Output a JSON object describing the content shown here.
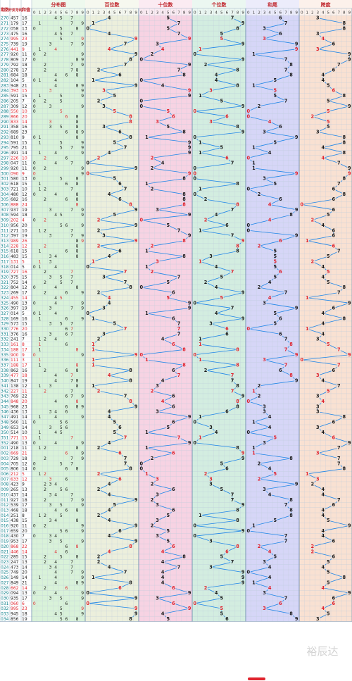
{
  "header": {
    "issue_label": "期数",
    "number_label": "开奖号码",
    "sum_label": "和值",
    "sections": [
      "分布图",
      "百位数",
      "十位数",
      "个位数",
      "和尾",
      "跨度"
    ],
    "digits": [
      "0",
      "1",
      "2",
      "3",
      "4",
      "5",
      "6",
      "7",
      "8",
      "9"
    ]
  },
  "watermark": "裕辰达",
  "colors": {
    "dist_bg": "#d9f2d9",
    "hundreds_bg": "#ecefdc",
    "tens_bg": "#f7d3e3",
    "units_bg": "#d3ede0",
    "hewei_bg": "#d6d6f7",
    "span_bg": "#f9e1d2",
    "line": "#1f86e8",
    "repeat_red": "#e0232d",
    "issue_teal": "#0d7f8a"
  },
  "chart_data": {
    "type": "table",
    "columns": [
      "期数",
      "开奖号码",
      "和值",
      "百位数",
      "十位数",
      "个位数",
      "和尾",
      "跨度"
    ],
    "rows": [
      {
        "issue": "270",
        "num": "457",
        "sum": "16"
      },
      {
        "issue": "271",
        "num": "179",
        "sum": "17"
      },
      {
        "issue": "272",
        "num": "058",
        "sum": "13"
      },
      {
        "issue": "273",
        "num": "475",
        "sum": "16"
      },
      {
        "issue": "274",
        "num": "995",
        "sum": "23"
      },
      {
        "issue": "275",
        "num": "739",
        "sum": "19"
      },
      {
        "issue": "276",
        "num": "441",
        "sum": "9"
      },
      {
        "issue": "277",
        "num": "920",
        "sum": "11"
      },
      {
        "issue": "278",
        "num": "809",
        "sum": "17"
      },
      {
        "issue": "279",
        "num": "792",
        "sum": "18"
      },
      {
        "issue": "280",
        "num": "278",
        "sum": "17"
      },
      {
        "issue": "281",
        "num": "684",
        "sum": "18"
      },
      {
        "issue": "282",
        "num": "104",
        "sum": "5"
      },
      {
        "issue": "283",
        "num": "948",
        "sum": "21"
      },
      {
        "issue": "284",
        "num": "393",
        "sum": "15"
      },
      {
        "issue": "285",
        "num": "591",
        "sum": "15"
      },
      {
        "issue": "286",
        "num": "205",
        "sum": "7"
      },
      {
        "issue": "287",
        "num": "309",
        "sum": "12"
      },
      {
        "issue": "288",
        "num": "550",
        "sum": "10"
      },
      {
        "issue": "289",
        "num": "866",
        "sum": "20"
      },
      {
        "issue": "290",
        "num": "833",
        "sum": "14"
      },
      {
        "issue": "291",
        "num": "358",
        "sum": "16"
      },
      {
        "issue": "292",
        "num": "689",
        "sum": "23"
      },
      {
        "issue": "293",
        "num": "810",
        "sum": "9"
      },
      {
        "issue": "294",
        "num": "591",
        "sum": "15"
      },
      {
        "issue": "295",
        "num": "795",
        "sum": "21"
      },
      {
        "issue": "296",
        "num": "491",
        "sum": "14"
      },
      {
        "issue": "297",
        "num": "226",
        "sum": "10"
      },
      {
        "issue": "298",
        "num": "047",
        "sum": "11"
      },
      {
        "issue": "299",
        "num": "920",
        "sum": "11"
      },
      {
        "issue": "300",
        "num": "090",
        "sum": "9"
      },
      {
        "issue": "301",
        "num": "580",
        "sum": "13"
      },
      {
        "issue": "302",
        "num": "618",
        "sum": "15"
      },
      {
        "issue": "303",
        "num": "721",
        "sum": "10"
      },
      {
        "issue": "304",
        "num": "480",
        "sum": "12"
      },
      {
        "issue": "305",
        "num": "682",
        "sum": "16"
      },
      {
        "issue": "306",
        "num": "888",
        "sum": "24"
      },
      {
        "issue": "307",
        "num": "937",
        "sum": "19"
      },
      {
        "issue": "308",
        "num": "594",
        "sum": "18"
      },
      {
        "issue": "309",
        "num": "202",
        "sum": "4"
      },
      {
        "issue": "310",
        "num": "956",
        "sum": "20"
      },
      {
        "issue": "311",
        "num": "271",
        "sum": "10"
      },
      {
        "issue": "312",
        "num": "397",
        "sum": "19"
      },
      {
        "issue": "313",
        "num": "989",
        "sum": "26"
      },
      {
        "issue": "314",
        "num": "228",
        "sum": "12"
      },
      {
        "issue": "315",
        "num": "618",
        "sum": "15"
      },
      {
        "issue": "316",
        "num": "483",
        "sum": "15"
      },
      {
        "issue": "317",
        "num": "131",
        "sum": "5"
      },
      {
        "issue": "318",
        "num": "014",
        "sum": "5"
      },
      {
        "issue": "319",
        "num": "727",
        "sum": "16"
      },
      {
        "issue": "320",
        "num": "375",
        "sum": "15"
      },
      {
        "issue": "321",
        "num": "752",
        "sum": "14"
      },
      {
        "issue": "322",
        "num": "804",
        "sum": "12"
      },
      {
        "issue": "323",
        "num": "269",
        "sum": "17"
      },
      {
        "issue": "324",
        "num": "455",
        "sum": "14"
      },
      {
        "issue": "325",
        "num": "490",
        "sum": "13"
      },
      {
        "issue": "326",
        "num": "397",
        "sum": "19"
      },
      {
        "issue": "327",
        "num": "014",
        "sum": "5"
      },
      {
        "issue": "328",
        "num": "169",
        "sum": "16"
      },
      {
        "issue": "329",
        "num": "573",
        "sum": "15"
      },
      {
        "issue": "330",
        "num": "776",
        "sum": "20"
      },
      {
        "issue": "331",
        "num": "376",
        "sum": "16"
      },
      {
        "issue": "332",
        "num": "241",
        "sum": "7"
      },
      {
        "issue": "333",
        "num": "161",
        "sum": "8"
      },
      {
        "issue": "334",
        "num": "188",
        "sum": "17"
      },
      {
        "issue": "335",
        "num": "900",
        "sum": "9"
      },
      {
        "issue": "336",
        "num": "111",
        "sum": "3"
      },
      {
        "issue": "337",
        "num": "188",
        "sum": "17"
      },
      {
        "issue": "338",
        "num": "862",
        "sum": "16"
      },
      {
        "issue": "339",
        "num": "477",
        "sum": "18"
      },
      {
        "issue": "340",
        "num": "847",
        "sum": "19"
      },
      {
        "issue": "341",
        "num": "138",
        "sum": "12"
      },
      {
        "issue": "342",
        "num": "227",
        "sum": "11"
      },
      {
        "issue": "343",
        "num": "769",
        "sum": "22"
      },
      {
        "issue": "344",
        "num": "848",
        "sum": "20"
      },
      {
        "issue": "345",
        "num": "968",
        "sum": "23"
      },
      {
        "issue": "346",
        "num": "436",
        "sum": "13"
      },
      {
        "issue": "347",
        "num": "491",
        "sum": "14"
      },
      {
        "issue": "348",
        "num": "560",
        "sum": "11"
      },
      {
        "issue": "349",
        "num": "653",
        "sum": "14"
      },
      {
        "issue": "350",
        "num": "514",
        "sum": "10"
      },
      {
        "issue": "351",
        "num": "771",
        "sum": "15"
      },
      {
        "issue": "352",
        "num": "490",
        "sum": "13"
      },
      {
        "issue": "001",
        "num": "218",
        "sum": "11"
      },
      {
        "issue": "002",
        "num": "669",
        "sum": "21"
      },
      {
        "issue": "003",
        "num": "729",
        "sum": "18"
      },
      {
        "issue": "004",
        "num": "705",
        "sum": "12"
      },
      {
        "issue": "005",
        "num": "806",
        "sum": "14"
      },
      {
        "issue": "006",
        "num": "212",
        "sum": "5"
      },
      {
        "issue": "007",
        "num": "633",
        "sum": "12"
      },
      {
        "issue": "008",
        "num": "423",
        "sum": "9"
      },
      {
        "issue": "009",
        "num": "265",
        "sum": "13"
      },
      {
        "issue": "010",
        "num": "437",
        "sum": "14"
      },
      {
        "issue": "011",
        "num": "927",
        "sum": "18"
      },
      {
        "issue": "012",
        "num": "539",
        "sum": "17"
      },
      {
        "issue": "013",
        "num": "468",
        "sum": "18"
      },
      {
        "issue": "014",
        "num": "251",
        "sum": "8"
      },
      {
        "issue": "015",
        "num": "438",
        "sum": "15"
      },
      {
        "issue": "016",
        "num": "920",
        "sum": "11"
      },
      {
        "issue": "017",
        "num": "659",
        "sum": "20"
      },
      {
        "issue": "018",
        "num": "430",
        "sum": "7"
      },
      {
        "issue": "019",
        "num": "953",
        "sum": "17"
      },
      {
        "issue": "020",
        "num": "868",
        "sum": "22"
      },
      {
        "issue": "021",
        "num": "446",
        "sum": "14"
      },
      {
        "issue": "022",
        "num": "285",
        "sum": "15"
      },
      {
        "issue": "023",
        "num": "247",
        "sum": "13"
      },
      {
        "issue": "024",
        "num": "473",
        "sum": "14"
      },
      {
        "issue": "025",
        "num": "749",
        "sum": "20"
      },
      {
        "issue": "026",
        "num": "149",
        "sum": "14"
      },
      {
        "issue": "027",
        "num": "849",
        "sum": "21"
      },
      {
        "issue": "028",
        "num": "662",
        "sum": "14"
      },
      {
        "issue": "029",
        "num": "094",
        "sum": "13"
      },
      {
        "issue": "030",
        "num": "935",
        "sum": "17"
      },
      {
        "issue": "031",
        "num": "060",
        "sum": "6"
      },
      {
        "issue": "032",
        "num": "995",
        "sum": "23"
      },
      {
        "issue": "033",
        "num": "945",
        "sum": "18"
      },
      {
        "issue": "034",
        "num": "856",
        "sum": "19"
      }
    ]
  }
}
